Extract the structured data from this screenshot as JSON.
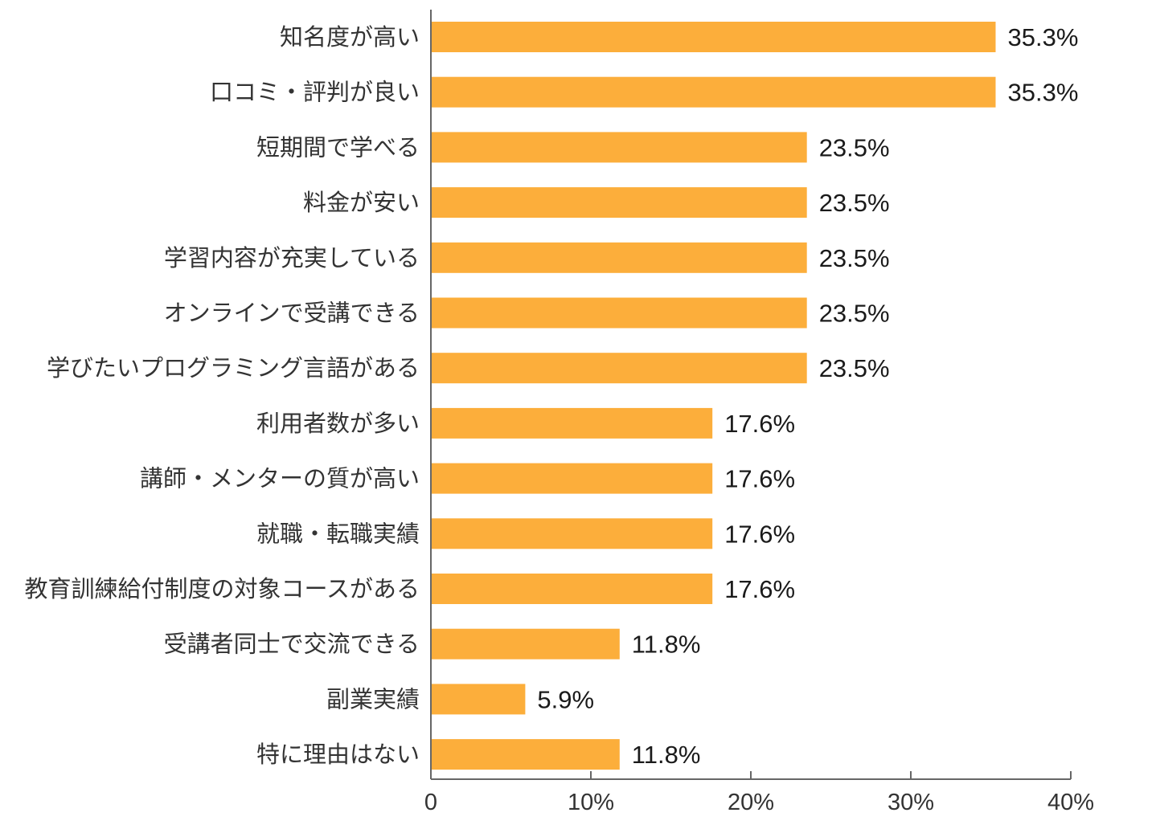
{
  "chart_data": {
    "type": "bar",
    "orientation": "horizontal",
    "categories": [
      "知名度が高い",
      "口コミ・評判が良い",
      "短期間で学べる",
      "料金が安い",
      "学習内容が充実している",
      "オンラインで受講できる",
      "学びたいプログラミング言語がある",
      "利用者数が多い",
      "講師・メンターの質が高い",
      "就職・転職実績",
      "教育訓練給付制度の対象コースがある",
      "受講者同士で交流できる",
      "副業実績",
      "特に理由はない"
    ],
    "values": [
      35.3,
      35.3,
      23.5,
      23.5,
      23.5,
      23.5,
      23.5,
      17.6,
      17.6,
      17.6,
      17.6,
      11.8,
      5.9,
      11.8
    ],
    "value_labels": [
      "35.3%",
      "35.3%",
      "23.5%",
      "23.5%",
      "23.5%",
      "23.5%",
      "23.5%",
      "17.6%",
      "17.6%",
      "17.6%",
      "17.6%",
      "11.8%",
      "5.9%",
      "11.8%"
    ],
    "xlim": [
      0,
      40
    ],
    "x_ticks": [
      0,
      10,
      20,
      30,
      40
    ],
    "x_tick_labels": [
      "0",
      "10%",
      "20%",
      "30%",
      "40%"
    ],
    "title": "",
    "xlabel": "",
    "ylabel": "",
    "grid": false,
    "legend": "none",
    "bar_color": "#FCAE3B",
    "axis_color": "#666666"
  }
}
